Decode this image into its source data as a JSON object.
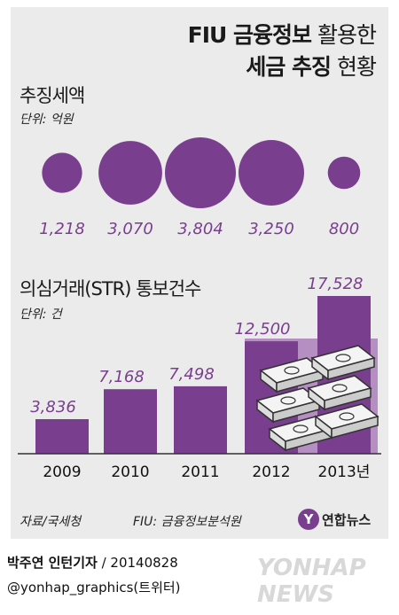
{
  "header": {
    "title_line1_bold": "FIU 금융정보",
    "title_line1_light": " 활용한",
    "title_line2_bold": "세금 추징",
    "title_line2_light": " 현황"
  },
  "chart_data": [
    {
      "type": "bubble",
      "title": "추징세액",
      "unit": "단위: 억원",
      "values": [
        1218,
        3070,
        3804,
        3250,
        800
      ],
      "value_labels": [
        "1,218",
        "3,070",
        "3,804",
        "3,250",
        "800"
      ],
      "categories": [
        "2009",
        "2010",
        "2011",
        "2012",
        "2013"
      ]
    },
    {
      "type": "bar",
      "title": "의심거래(STR) 통보건수",
      "unit": "단위: 건",
      "categories": [
        "2009",
        "2010",
        "2011",
        "2012",
        "2013년"
      ],
      "values": [
        3836,
        7168,
        7498,
        12500,
        17528
      ],
      "value_labels": [
        "3,836",
        "7,168",
        "7,498",
        "12,500",
        "17,528"
      ]
    }
  ],
  "footer": {
    "source": "자료/국세청",
    "fiu_note": "FIU: 금융정보분석원",
    "logo_text": "연합뉴스",
    "credit_name": "박주연 인턴기자",
    "credit_date": " / 20140828",
    "credit_handle": "@yonhap_graphics(트위터)",
    "watermark": "YONHAP NEWS"
  },
  "colors": {
    "accent": "#7a3e8e",
    "bar": "#7a3e8e",
    "bar_light": "#b58ec2",
    "panel_bg": "#ebebeb"
  }
}
